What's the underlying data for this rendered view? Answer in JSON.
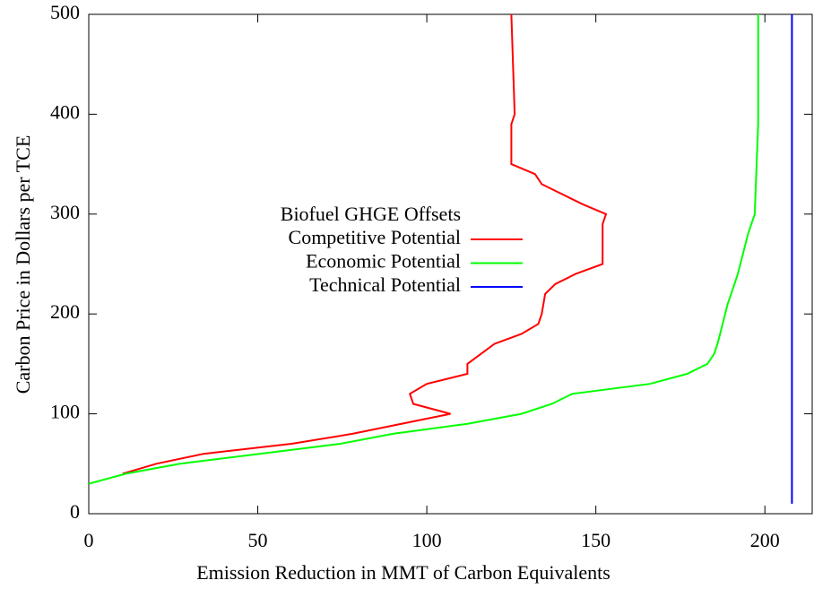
{
  "chart_data": {
    "type": "line",
    "xlabel": "Emission Reduction in MMT of Carbon Equivalents",
    "ylabel": "Carbon Price in Dollars per TCE",
    "legend_title": "Biofuel GHGE Offsets",
    "xlim": [
      0,
      214
    ],
    "xticks": [
      0,
      50,
      100,
      150,
      200
    ],
    "ylim": [
      0,
      500
    ],
    "yticks": [
      0,
      100,
      200,
      300,
      400,
      500
    ],
    "series": [
      {
        "name": "Competitive Potential",
        "color": "#ff0000",
        "x": [
          10,
          20,
          34,
          60,
          78,
          107,
          96,
          95,
          100,
          112,
          112,
          120,
          128,
          133,
          134,
          135,
          138,
          144,
          152,
          152,
          153,
          146,
          134,
          132,
          125,
          125,
          126,
          125
        ],
        "values": [
          40,
          50,
          60,
          70,
          80,
          100,
          110,
          120,
          130,
          140,
          150,
          170,
          180,
          190,
          200,
          220,
          230,
          240,
          250,
          290,
          300,
          310,
          330,
          340,
          350,
          390,
          400,
          500
        ]
      },
      {
        "name": "Economic Potential",
        "color": "#00ff00",
        "x": [
          0,
          11,
          27,
          74.5,
          90,
          112,
          128,
          137,
          143,
          166,
          177,
          183,
          185,
          186,
          187.5,
          189,
          190,
          191,
          192,
          195,
          197,
          198,
          198
        ],
        "values": [
          30,
          40,
          50,
          70,
          80,
          90,
          100,
          110,
          120,
          130,
          140,
          150,
          160,
          170,
          190,
          210,
          220,
          230,
          240,
          280,
          300,
          390,
          500
        ]
      },
      {
        "name": "Technical Potential",
        "color": "#0000ff",
        "x": [
          208,
          208
        ],
        "values": [
          10,
          500
        ]
      }
    ]
  }
}
